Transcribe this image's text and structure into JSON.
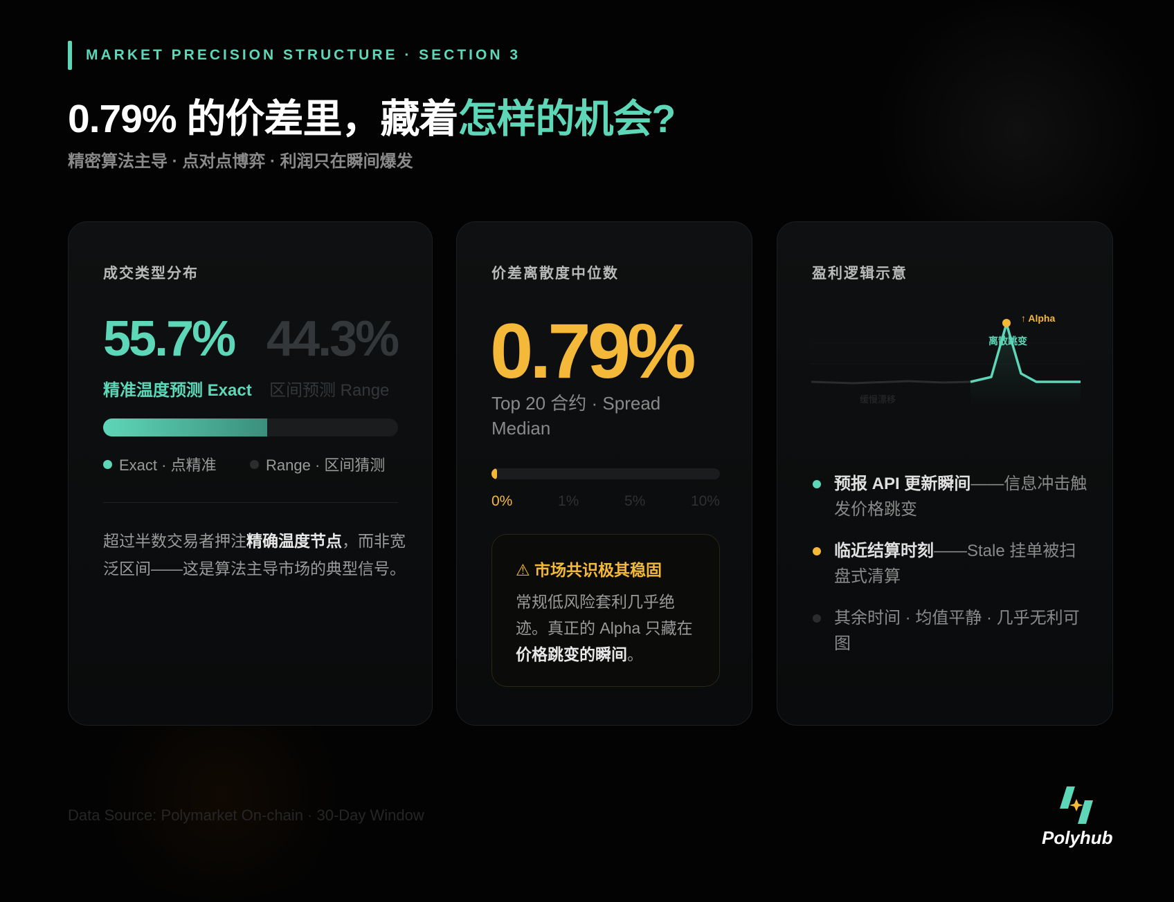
{
  "header": {
    "eyebrow": "MARKET PRECISION STRUCTURE · SECTION 3",
    "title_plain": "0.79% 的价差里，藏着",
    "title_highlight": "怎样的机会?",
    "subtitle": "精密算法主导 · 点对点博弈 · 利润只在瞬间爆发"
  },
  "colors": {
    "background": "#030303",
    "accent_teal": "#5ed6b8",
    "accent_orange": "#f5b93a",
    "muted": "#8a8a8a"
  },
  "card_distribution": {
    "title": "成交类型分布",
    "exact_value": "55.7%",
    "range_value": "44.3%",
    "exact_label": "精准温度预测 Exact",
    "range_label": "区间预测 Range",
    "exact_share_percent": 55.7,
    "legend": [
      {
        "label": "Exact · 点精准",
        "color": "#5ed6b8"
      },
      {
        "label": "Range · 区间猜测",
        "color": "#2a2c2d"
      }
    ],
    "paragraph_pre": "超过半数交易者押注",
    "paragraph_bold": "精确温度节点",
    "paragraph_post": "，而非宽泛区间——这是算法主导市场的典型信号。"
  },
  "card_spread": {
    "title": "价差离散度中位数",
    "value": "0.79%",
    "caption": "Top 20 合约 · Spread Median",
    "gauge_value_percent": 0.79,
    "ticks": [
      "0%",
      "1%",
      "5%",
      "10%"
    ],
    "callout_icon": "warning-icon",
    "callout_title": "⚠ 市场共识极其稳固",
    "callout_pre": "常规低风险套利几乎绝迹。真正的 Alpha 只藏在",
    "callout_bold": "价格跳变的瞬间",
    "callout_post": "。"
  },
  "card_logic": {
    "title": "盈利逻辑示意",
    "chart": {
      "alpha_label": "↑ Alpha",
      "spike_label": "离散跳变",
      "drift_label": "缓慢漂移"
    },
    "bullets": [
      {
        "bold": "预报 API 更新瞬间",
        "text": "——信息冲击触发价格跳变",
        "color": "#5ed6b8"
      },
      {
        "bold": "临近结算时刻",
        "text": "——Stale 挂单被扫盘式清算",
        "color": "#f5b93a"
      },
      {
        "bold": "",
        "text": "其余时间 · 均值平静 · 几乎无利可图",
        "color": "#2a2c2d"
      }
    ]
  },
  "footer": {
    "source": "Data Source: Polymarket On-chain · 30-Day Window"
  },
  "logo": {
    "text": "Polyhub"
  }
}
